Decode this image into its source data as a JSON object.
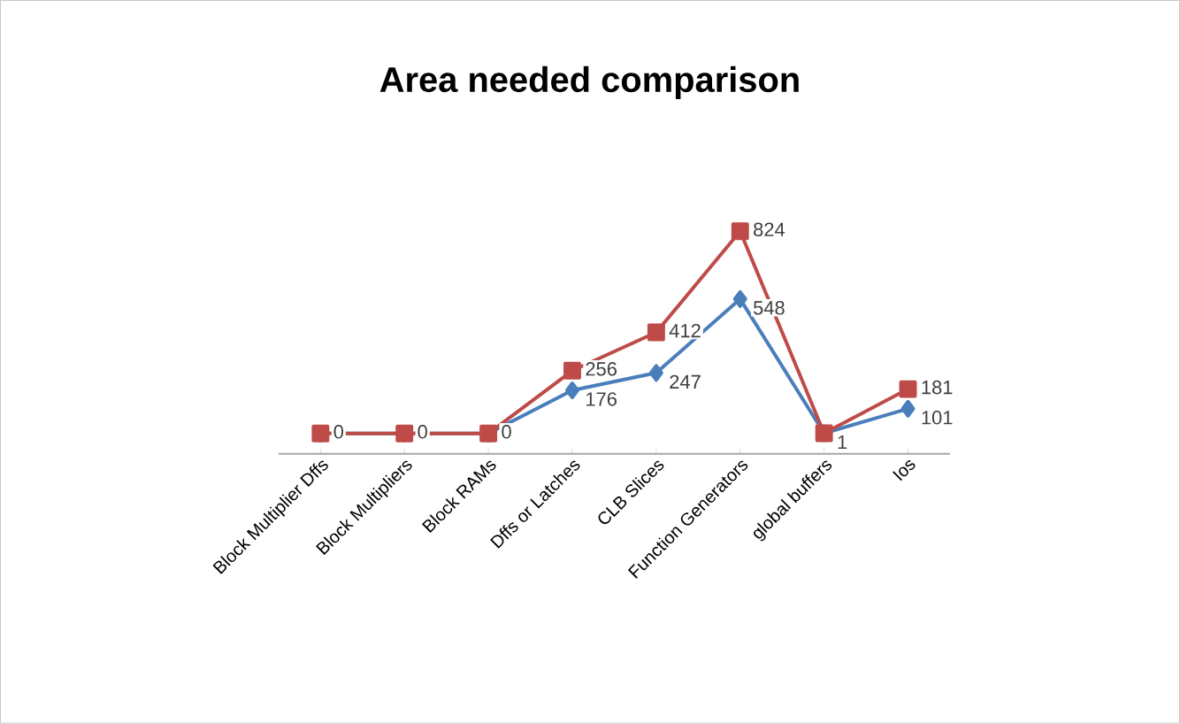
{
  "chart_data": {
    "type": "line",
    "title": "Area needed comparison",
    "categories": [
      "Block Multiplier Dffs",
      "Block Multipliers",
      "Block RAMs",
      "Dffs or Latches",
      "CLB Slices",
      "Function Generators",
      "global buffers",
      "Ios"
    ],
    "series": [
      {
        "color": "#4a7ebb",
        "marker": "diamond",
        "values": [
          0,
          0,
          0,
          176,
          247,
          548,
          1,
          101
        ],
        "value_labels": [
          null,
          null,
          null,
          "176",
          "247",
          "548",
          "1",
          "101"
        ]
      },
      {
        "color": "#be4b48",
        "marker": "square",
        "values": [
          0,
          0,
          0,
          256,
          412,
          824,
          1,
          181
        ],
        "value_labels": [
          "0",
          "0",
          "0",
          "256",
          "412",
          "824",
          null,
          "181"
        ]
      }
    ],
    "tick_labels": "x",
    "grid": false
  }
}
